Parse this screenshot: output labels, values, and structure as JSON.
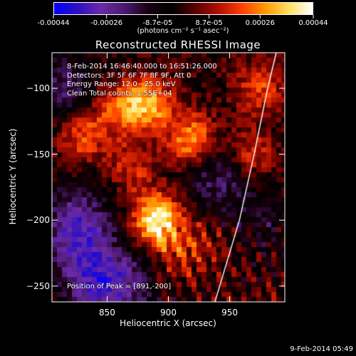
{
  "colorbar": {
    "ticks": [
      "-0.00044",
      "-0.00026",
      "-8.7e-05",
      "8.7e-05",
      "0.00026",
      "0.00044"
    ],
    "tick_values": [
      -0.00044,
      -0.00026,
      -8.7e-05,
      8.7e-05,
      0.00026,
      0.00044
    ],
    "units": "(photons cm⁻² s⁻¹ asec⁻²)",
    "stops": [
      "#0000ff",
      "#3010c0",
      "#6b2aa8",
      "#4a1a70",
      "#1a0010",
      "#000000",
      "#5a0000",
      "#b01000",
      "#ff4000",
      "#ff9a00",
      "#ffe060",
      "#ffffff"
    ]
  },
  "chart_data": {
    "type": "heatmap",
    "title": "Reconstructed RHESSI Image",
    "xlabel": "Heliocentric X (arcsec)",
    "ylabel": "Heliocentric Y (arcsec)",
    "xlim": [
      805,
      995
    ],
    "ylim": [
      -262,
      -73
    ],
    "xticks": [
      850,
      900,
      950
    ],
    "yticks": [
      -100,
      -150,
      -200,
      -250
    ],
    "value_range": [
      -0.00044,
      0.00044
    ],
    "sources": [
      {
        "x": 891,
        "y": -200,
        "value": 0.00044
      },
      {
        "x": 885,
        "y": -112,
        "value": 0.0003
      },
      {
        "x": 920,
        "y": -140,
        "value": 0.00032
      },
      {
        "x": 860,
        "y": -115,
        "value": 0.00022
      },
      {
        "x": 830,
        "y": -135,
        "value": 0.00022
      },
      {
        "x": 975,
        "y": -100,
        "value": 0.00018
      },
      {
        "x": 965,
        "y": -150,
        "value": 0.0002
      },
      {
        "x": 870,
        "y": -160,
        "value": 0.00015
      },
      {
        "x": 905,
        "y": -230,
        "value": 0.00012
      },
      {
        "x": 930,
        "y": -215,
        "value": 0.0001
      }
    ],
    "negative_regions": [
      {
        "x": 825,
        "y": -205,
        "value": -0.0003
      },
      {
        "x": 840,
        "y": -245,
        "value": -0.00028
      },
      {
        "x": 940,
        "y": -165,
        "value": -0.0002
      },
      {
        "x": 815,
        "y": -100,
        "value": -0.00018
      },
      {
        "x": 870,
        "y": -250,
        "value": -0.00015
      },
      {
        "x": 975,
        "y": -200,
        "value": -0.0001
      }
    ],
    "limb_line": [
      [
        938,
        -262
      ],
      [
        958,
        -200
      ],
      [
        970,
        -150
      ],
      [
        981,
        -100
      ],
      [
        988,
        -73
      ]
    ],
    "annotations": {
      "line1": "8-Feb-2014 16:46:40.000 to 16:51:26.000",
      "line2": "Detectors: 3F 5F 6F 7F 8F 9F, Att 0",
      "line3": "Energy Range: 12.0 - 25.0 keV",
      "line4": "Clean    Total counts: 1.55E+04",
      "peak": "Position of Peak = [891,-200]"
    }
  },
  "footer": {
    "date": "9-Feb-2014 05:49"
  }
}
